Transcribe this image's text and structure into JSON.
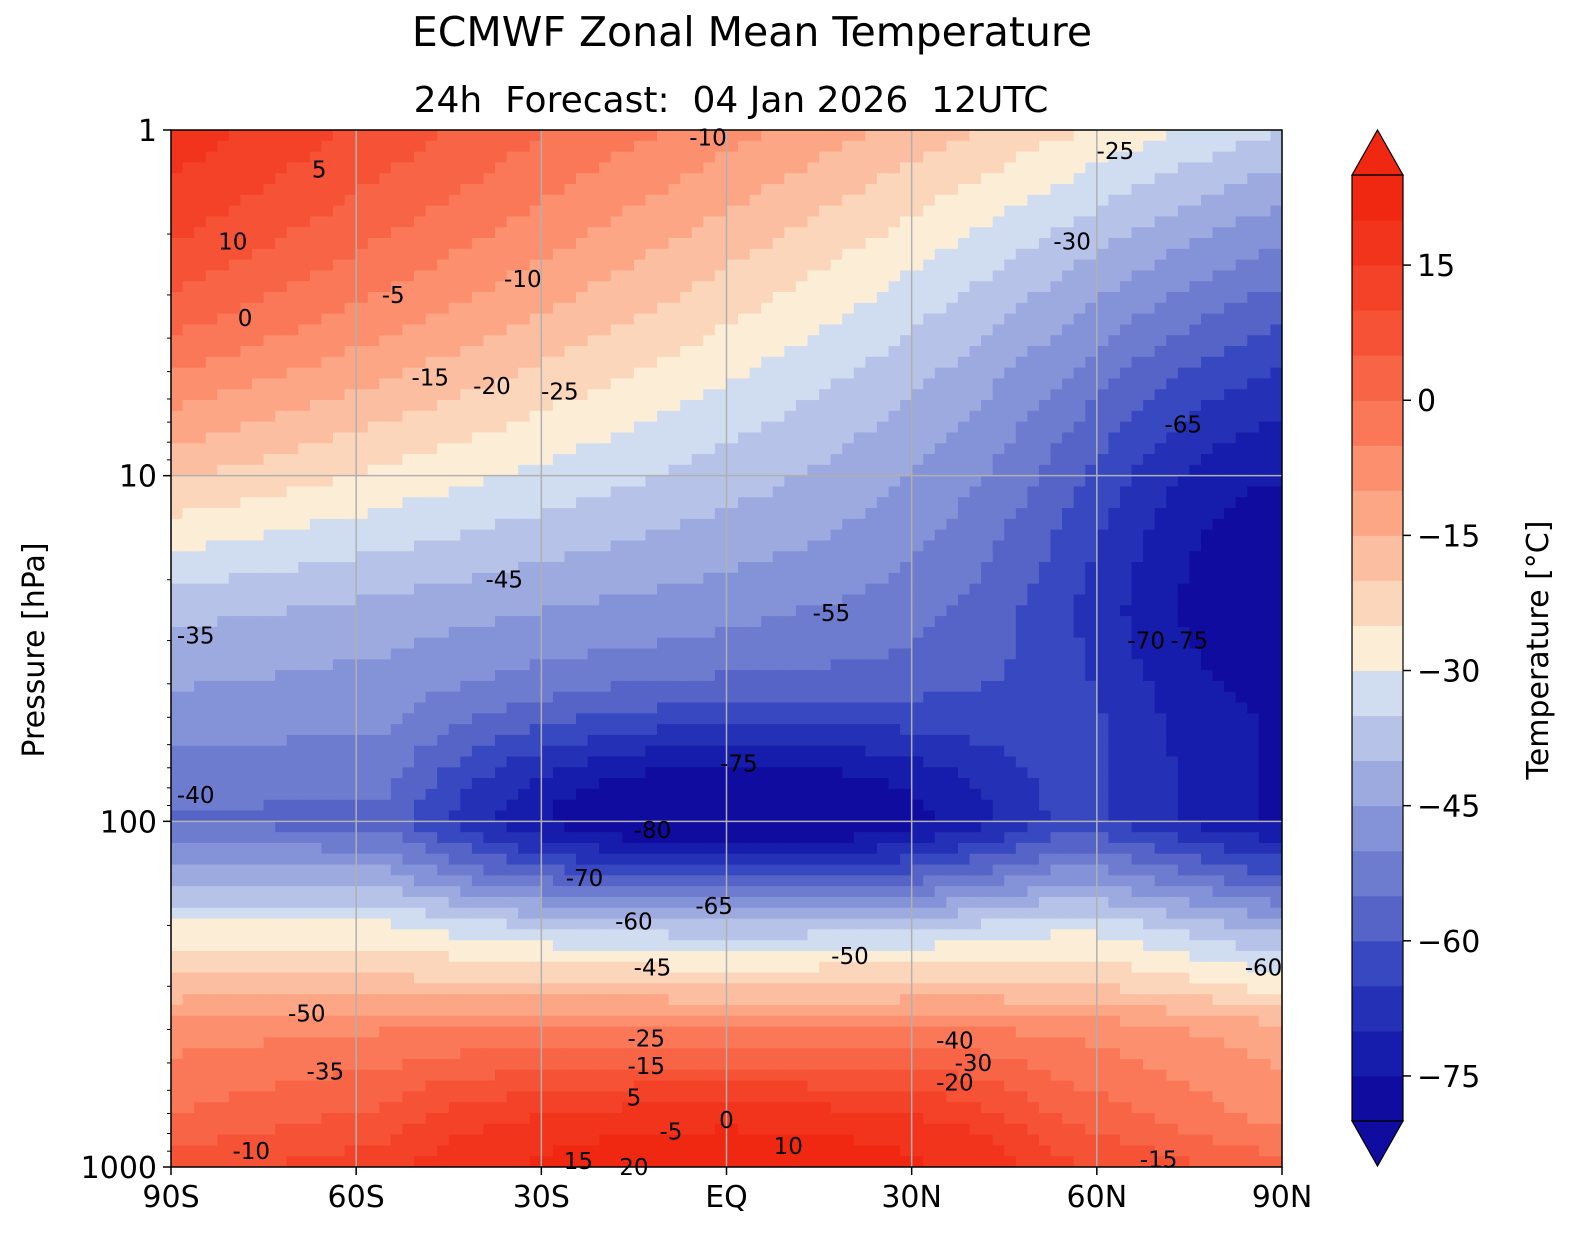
{
  "title": "ECMWF Zonal Mean Temperature",
  "subtitle": "24h  Forecast:  04 Jan 2026  12UTC",
  "chart_data": {
    "type": "heatmap",
    "title": "ECMWF Zonal Mean Temperature",
    "subtitle": "24h  Forecast:  04 Jan 2026  12UTC",
    "xlabel": "",
    "ylabel": "Pressure [hPa]",
    "colorbar_label": "Temperature [°C]",
    "x_ticks": [
      "90S",
      "60S",
      "30S",
      "EQ",
      "30N",
      "60N",
      "90N"
    ],
    "x_tick_values": [
      -90,
      -60,
      -30,
      0,
      30,
      60,
      90
    ],
    "y_ticks": [
      "1",
      "10",
      "100",
      "1000"
    ],
    "y_tick_values": [
      1,
      10,
      100,
      1000
    ],
    "y_scale": "log",
    "y_inverted": true,
    "xlim": [
      -90,
      90
    ],
    "ylim": [
      1000,
      1
    ],
    "grid": true,
    "colorbar_ticks": [
      "15",
      "0",
      "−15",
      "−30",
      "−45",
      "−60",
      "−75"
    ],
    "colorbar_tick_values": [
      15,
      0,
      -15,
      -30,
      -45,
      -60,
      -75
    ],
    "colorbar_range": [
      -80,
      25
    ],
    "colorbar_extend": "both",
    "contour_interval": 5,
    "contour_labels": [
      {
        "text": "5",
        "lat": -66,
        "p": 1.3
      },
      {
        "text": "10",
        "lat": -80,
        "p": 2.1
      },
      {
        "text": "0",
        "lat": -78,
        "p": 3.5
      },
      {
        "text": "-5",
        "lat": -54,
        "p": 3.0
      },
      {
        "text": "-10",
        "lat": -33,
        "p": 2.7
      },
      {
        "text": "-10",
        "lat": -3,
        "p": 1.05
      },
      {
        "text": "-15",
        "lat": -48,
        "p": 5.2
      },
      {
        "text": "-20",
        "lat": -38,
        "p": 5.5
      },
      {
        "text": "-25",
        "lat": -27,
        "p": 5.7
      },
      {
        "text": "-25",
        "lat": 63,
        "p": 1.15
      },
      {
        "text": "-30",
        "lat": 56,
        "p": 2.1
      },
      {
        "text": "-35",
        "lat": -86,
        "p": 29
      },
      {
        "text": "-40",
        "lat": -86,
        "p": 84
      },
      {
        "text": "-45",
        "lat": -36,
        "p": 20
      },
      {
        "text": "-55",
        "lat": 17,
        "p": 25
      },
      {
        "text": "-65",
        "lat": 74,
        "p": 7.1
      },
      {
        "text": "-70",
        "lat": 68,
        "p": 30
      },
      {
        "text": "-75",
        "lat": 75,
        "p": 30
      },
      {
        "text": "-75",
        "lat": 2,
        "p": 68
      },
      {
        "text": "-80",
        "lat": -12,
        "p": 106
      },
      {
        "text": "-70",
        "lat": -23,
        "p": 146
      },
      {
        "text": "-65",
        "lat": -2,
        "p": 176
      },
      {
        "text": "-60",
        "lat": -15,
        "p": 195
      },
      {
        "text": "-50",
        "lat": 20,
        "p": 245
      },
      {
        "text": "-45",
        "lat": -12,
        "p": 265
      },
      {
        "text": "-60",
        "lat": 87,
        "p": 265
      },
      {
        "text": "-50",
        "lat": -68,
        "p": 360
      },
      {
        "text": "-40",
        "lat": 37,
        "p": 430
      },
      {
        "text": "-35",
        "lat": -65,
        "p": 530
      },
      {
        "text": "-30",
        "lat": 40,
        "p": 500
      },
      {
        "text": "-25",
        "lat": -13,
        "p": 425
      },
      {
        "text": "-15",
        "lat": -13,
        "p": 510
      },
      {
        "text": "-20",
        "lat": 37,
        "p": 570
      },
      {
        "text": "5",
        "lat": -15,
        "p": 630
      },
      {
        "text": "0",
        "lat": 0,
        "p": 730
      },
      {
        "text": "-5",
        "lat": -9,
        "p": 790
      },
      {
        "text": "10",
        "lat": 10,
        "p": 870
      },
      {
        "text": "15",
        "lat": -24,
        "p": 960
      },
      {
        "text": "20",
        "lat": -15,
        "p": 1000
      },
      {
        "text": "-10",
        "lat": -77,
        "p": 900
      },
      {
        "text": "-15",
        "lat": 70,
        "p": 950
      }
    ]
  }
}
